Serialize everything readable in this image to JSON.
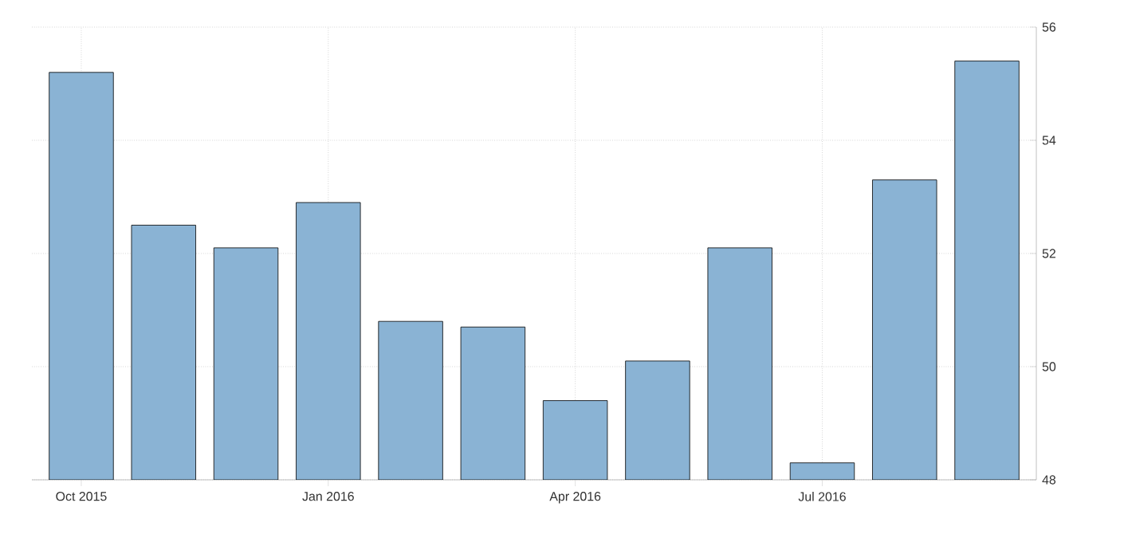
{
  "chart_data": {
    "type": "bar",
    "categories": [
      "Oct 2015",
      null,
      null,
      "Jan 2016",
      null,
      null,
      "Apr 2016",
      null,
      null,
      "Jul 2016",
      null,
      null
    ],
    "values": [
      55.2,
      52.5,
      52.1,
      52.9,
      50.8,
      50.7,
      49.4,
      50.1,
      52.1,
      48.3,
      53.3,
      55.4
    ],
    "color": "#8ab3d4",
    "ylim": [
      48,
      56
    ],
    "yticks": [
      48,
      50,
      52,
      54,
      56
    ],
    "grid": true
  }
}
